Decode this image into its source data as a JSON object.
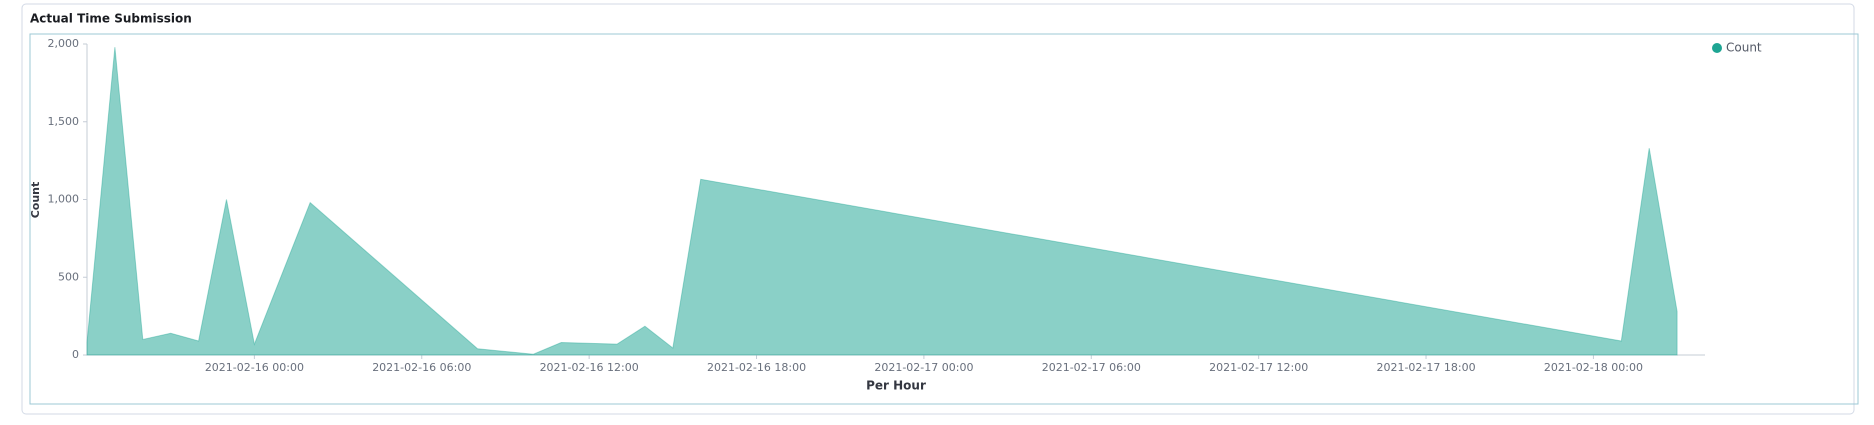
{
  "chart_data": {
    "type": "area",
    "title": "Actual Time Submission",
    "x_label": "Per Hour",
    "y_label": "Count",
    "x": [
      "2021-02-15 18:00",
      "2021-02-15 19:00",
      "2021-02-15 20:00",
      "2021-02-15 21:00",
      "2021-02-15 22:00",
      "2021-02-15 23:00",
      "2021-02-16 00:00",
      "2021-02-16 02:00",
      "2021-02-16 08:00",
      "2021-02-16 10:00",
      "2021-02-16 11:00",
      "2021-02-16 13:00",
      "2021-02-16 14:00",
      "2021-02-16 15:00",
      "2021-02-16 16:00",
      "2021-02-18 01:00",
      "2021-02-18 02:00",
      "2021-02-18 03:00"
    ],
    "series": [
      {
        "name": "Count",
        "color": "#1ea593",
        "values": [
          80,
          1980,
          100,
          140,
          90,
          1000,
          70,
          980,
          40,
          5,
          80,
          70,
          185,
          45,
          1130,
          90,
          1330,
          280
        ]
      }
    ],
    "xlim": [
      "2021-02-15 18:00",
      "2021-02-18 04:00"
    ],
    "xticks": [
      "2021-02-16 00:00",
      "2021-02-16 06:00",
      "2021-02-16 12:00",
      "2021-02-16 18:00",
      "2021-02-17 00:00",
      "2021-02-17 06:00",
      "2021-02-17 12:00",
      "2021-02-17 18:00",
      "2021-02-18 00:00"
    ],
    "ylim": [
      0,
      2000
    ],
    "yticks": [
      0,
      500,
      {
        "value": 1000,
        "label": "1,000"
      },
      {
        "value": 1500,
        "label": "1,500"
      },
      {
        "value": 2000,
        "label": "2,000"
      }
    ],
    "legend": "top-right"
  }
}
